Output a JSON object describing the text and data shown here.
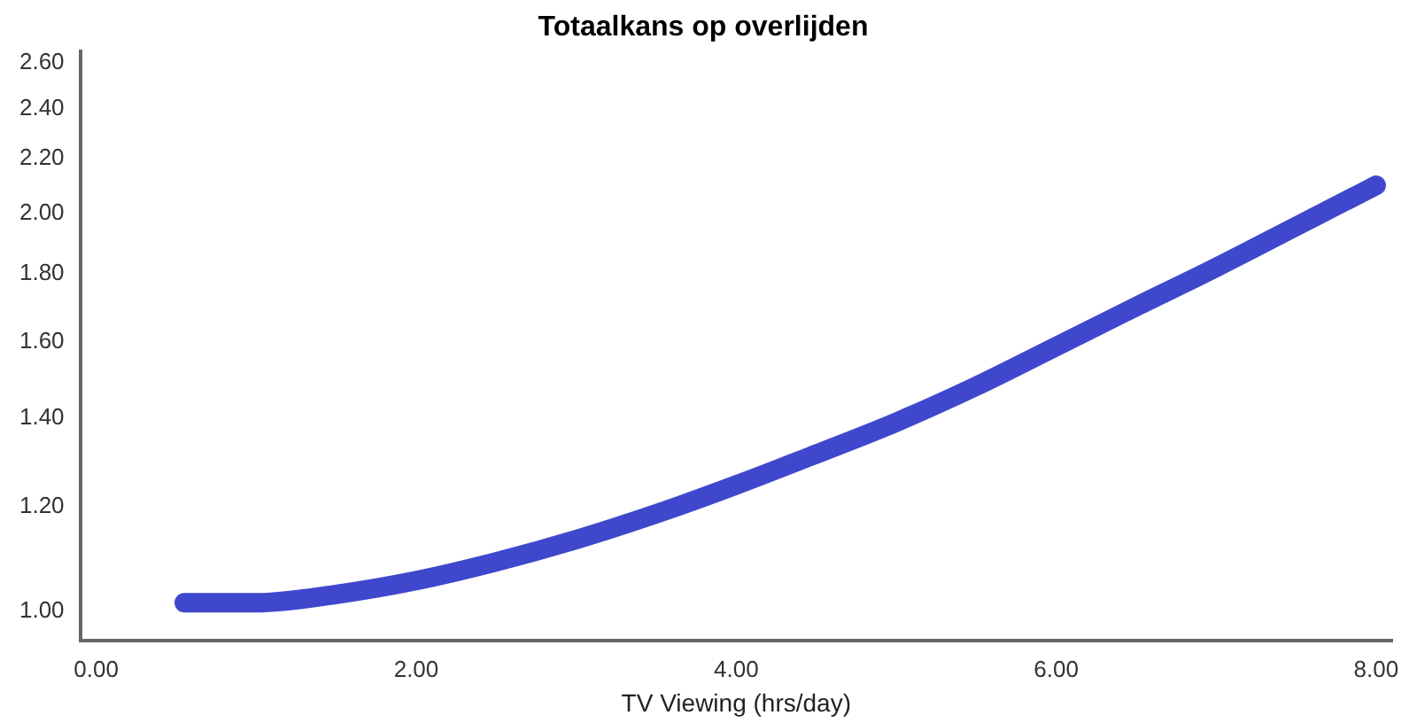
{
  "chart_data": {
    "type": "line",
    "title": "Totaalkans op overlijden",
    "xlabel": "TV Viewing (hrs/day)",
    "x": [
      0.55,
      1,
      1.5,
      2,
      2.5,
      3,
      3.5,
      4,
      4.5,
      5,
      5.5,
      6,
      6.5,
      7,
      7.5,
      8
    ],
    "series": [
      {
        "color": "#3f48cc",
        "values": [
          1.015,
          1.015,
          1.03,
          1.055,
          1.09,
          1.133,
          1.185,
          1.246,
          1.315,
          1.39,
          1.48,
          1.586,
          1.7,
          1.82,
          1.955,
          2.1
        ]
      }
    ],
    "xlim": [
      -0.1,
      8.1
    ],
    "ylim": [
      0.95,
      2.65
    ],
    "log": "y",
    "xticks": [
      {
        "value": 0,
        "label": "0.00"
      },
      {
        "value": 2,
        "label": "2.00"
      },
      {
        "value": 4,
        "label": "4.00"
      },
      {
        "value": 6,
        "label": "6.00"
      },
      {
        "value": 8,
        "label": "8.00"
      }
    ],
    "yticks": [
      {
        "value": 1,
        "label": "1.00"
      },
      {
        "value": 1.2,
        "label": "1.20"
      },
      {
        "value": 1.4,
        "label": "1.40"
      },
      {
        "value": 1.6,
        "label": "1.60"
      },
      {
        "value": 1.8,
        "label": "1.80"
      },
      {
        "value": 2,
        "label": "2.00"
      },
      {
        "value": 2.2,
        "label": "2.20"
      },
      {
        "value": 2.4,
        "label": "2.40"
      },
      {
        "value": 2.6,
        "label": "2.60"
      }
    ],
    "grid": false,
    "legend": false,
    "marker": "none",
    "line_style": "solid"
  }
}
